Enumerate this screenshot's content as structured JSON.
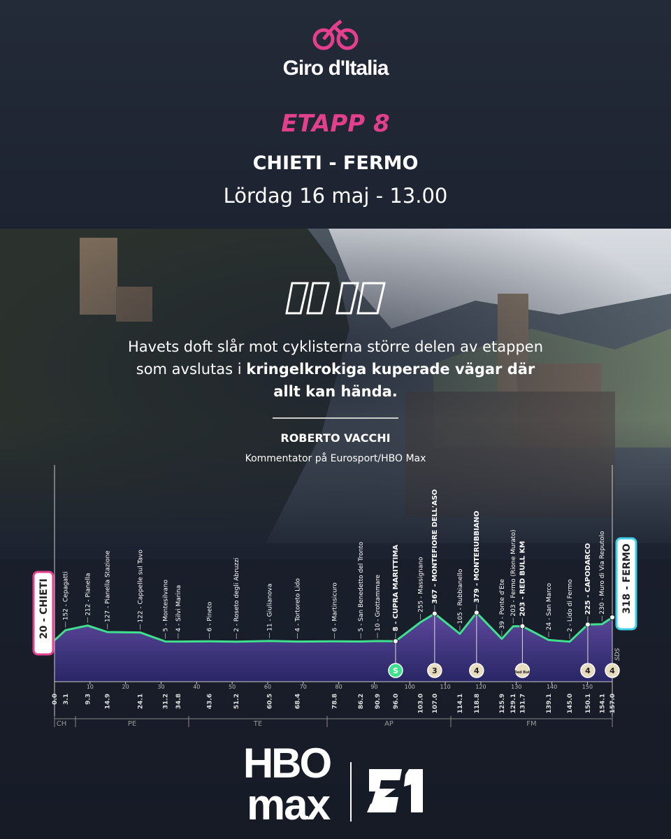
{
  "header": {
    "logo": "Giro d'Italia",
    "stage": "ETAPP 8",
    "route": "CHIETI - FERMO",
    "date": "Lördag 16 maj - 13.00"
  },
  "quote": {
    "text": "Havets doft slår mot cyklisterna större delen av etappen som avslutas i ",
    "highlight": "kringelkrokiga kuperade vägar där allt kan hända.",
    "author": "ROBERTO VACCHI",
    "role": "Kommentator på Eurosport/HBO Max"
  },
  "profile": {
    "xticks": [
      10,
      20,
      30,
      40,
      50,
      60,
      70,
      80,
      90,
      100,
      110,
      120,
      130,
      140,
      150
    ],
    "zones": [
      "CH",
      "PE",
      "TE",
      "AP",
      "FM"
    ],
    "note": "SDS",
    "waypoints": [
      {
        "km": "0.0",
        "label": "20 - CHIETI"
      },
      {
        "km": "3.1",
        "label": "152 - Cepagatti"
      },
      {
        "km": "9.3",
        "label": "212 - Pianella"
      },
      {
        "km": "14.9",
        "label": "127 - Pianella Stazione"
      },
      {
        "km": "24.1",
        "label": "122 - Cappelle sul Tavo"
      },
      {
        "km": "31.2",
        "label": "5 - Montesilvano"
      },
      {
        "km": "34.8",
        "label": "4 - Silvi Marina"
      },
      {
        "km": "43.6",
        "label": "6 - Pineto"
      },
      {
        "km": "51.2",
        "label": "2 - Roseto degli Abruzzi"
      },
      {
        "km": "60.5",
        "label": "11 - Giulianova"
      },
      {
        "km": "68.4",
        "label": "4 - Tortoreto Lido"
      },
      {
        "km": "78.8",
        "label": "6 - Martinsicuro"
      },
      {
        "km": "86.2",
        "label": "5 - San Benedetto del Tronto"
      },
      {
        "km": "90.9",
        "label": "10 - Grottammare"
      },
      {
        "km": "96.0",
        "label": "8 - CUPRA MARITTIMA",
        "emphasis": true,
        "badge": "S"
      },
      {
        "km": "103.0",
        "label": "255 - Massignano"
      },
      {
        "km": "107.0",
        "label": "367 - MONTEFIORE DELL'ASO",
        "emphasis": true,
        "badge": "3"
      },
      {
        "km": "114.1",
        "label": "105 - Rubbianello"
      },
      {
        "km": "118.8",
        "label": "379 - MONTERUBBIANO",
        "emphasis": true,
        "badge": "4"
      },
      {
        "km": "125.9",
        "label": "39 - Ponte d'Ete"
      },
      {
        "km": "129.1",
        "label": "203 - Fermo (Rione Murato)"
      },
      {
        "km": "131.7",
        "label": "203 - RED BULL KM",
        "emphasis": true,
        "badge": "Red Bull"
      },
      {
        "km": "139.1",
        "label": "24 - San Marco"
      },
      {
        "km": "145.0",
        "label": "2 - Lido di Fermo"
      },
      {
        "km": "150.1",
        "label": "225 - CAPODARCO",
        "emphasis": true,
        "badge": "4"
      },
      {
        "km": "154.1",
        "label": "230 - Muro di Via Reputolo"
      },
      {
        "km": "157.0",
        "label": "318 - FERMO",
        "badge": "4"
      }
    ]
  },
  "footer": {
    "hbo": "HBO",
    "max": "max"
  }
}
